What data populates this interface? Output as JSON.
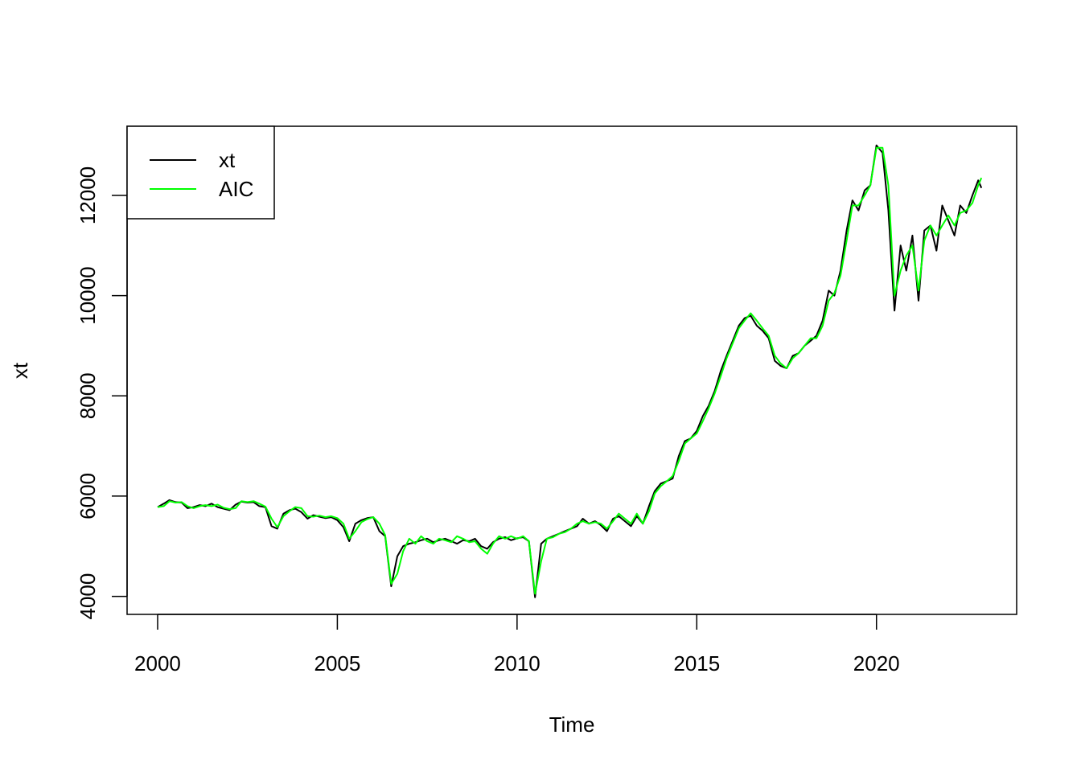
{
  "chart_data": {
    "type": "line",
    "title": "",
    "xlabel": "Time",
    "ylabel": "xt",
    "xlim": [
      1999.15,
      2023.9
    ],
    "ylim": [
      3640,
      13380
    ],
    "x_ticks": [
      2000,
      2005,
      2010,
      2015,
      2020
    ],
    "y_ticks": [
      4000,
      6000,
      8000,
      10000,
      12000
    ],
    "grid": false,
    "legend_position": "top-left",
    "series": [
      {
        "name": "xt",
        "color": "#000000",
        "points": [
          [
            2000.0,
            5780
          ],
          [
            2000.17,
            5850
          ],
          [
            2000.33,
            5920
          ],
          [
            2000.5,
            5880
          ],
          [
            2000.67,
            5870
          ],
          [
            2000.83,
            5760
          ],
          [
            2001.0,
            5780
          ],
          [
            2001.17,
            5820
          ],
          [
            2001.33,
            5800
          ],
          [
            2001.5,
            5850
          ],
          [
            2001.67,
            5780
          ],
          [
            2001.83,
            5750
          ],
          [
            2002.0,
            5720
          ],
          [
            2002.17,
            5830
          ],
          [
            2002.33,
            5890
          ],
          [
            2002.5,
            5870
          ],
          [
            2002.67,
            5880
          ],
          [
            2002.83,
            5800
          ],
          [
            2003.0,
            5780
          ],
          [
            2003.17,
            5400
          ],
          [
            2003.33,
            5350
          ],
          [
            2003.5,
            5650
          ],
          [
            2003.67,
            5720
          ],
          [
            2003.83,
            5750
          ],
          [
            2004.0,
            5680
          ],
          [
            2004.17,
            5550
          ],
          [
            2004.33,
            5620
          ],
          [
            2004.5,
            5590
          ],
          [
            2004.67,
            5560
          ],
          [
            2004.83,
            5580
          ],
          [
            2005.0,
            5520
          ],
          [
            2005.17,
            5380
          ],
          [
            2005.33,
            5100
          ],
          [
            2005.5,
            5450
          ],
          [
            2005.67,
            5520
          ],
          [
            2005.83,
            5560
          ],
          [
            2006.0,
            5580
          ],
          [
            2006.17,
            5300
          ],
          [
            2006.33,
            5200
          ],
          [
            2006.5,
            4200
          ],
          [
            2006.67,
            4800
          ],
          [
            2006.83,
            5000
          ],
          [
            2007.0,
            5050
          ],
          [
            2007.17,
            5080
          ],
          [
            2007.33,
            5120
          ],
          [
            2007.5,
            5150
          ],
          [
            2007.67,
            5080
          ],
          [
            2007.83,
            5120
          ],
          [
            2008.0,
            5150
          ],
          [
            2008.17,
            5100
          ],
          [
            2008.33,
            5050
          ],
          [
            2008.5,
            5120
          ],
          [
            2008.67,
            5100
          ],
          [
            2008.83,
            5150
          ],
          [
            2009.0,
            5000
          ],
          [
            2009.17,
            4950
          ],
          [
            2009.33,
            5080
          ],
          [
            2009.5,
            5150
          ],
          [
            2009.67,
            5180
          ],
          [
            2009.83,
            5120
          ],
          [
            2010.0,
            5160
          ],
          [
            2010.17,
            5180
          ],
          [
            2010.33,
            5100
          ],
          [
            2010.5,
            3980
          ],
          [
            2010.67,
            5050
          ],
          [
            2010.83,
            5150
          ],
          [
            2011.0,
            5200
          ],
          [
            2011.17,
            5250
          ],
          [
            2011.33,
            5300
          ],
          [
            2011.5,
            5350
          ],
          [
            2011.67,
            5400
          ],
          [
            2011.83,
            5550
          ],
          [
            2012.0,
            5450
          ],
          [
            2012.17,
            5500
          ],
          [
            2012.33,
            5420
          ],
          [
            2012.5,
            5300
          ],
          [
            2012.67,
            5550
          ],
          [
            2012.83,
            5600
          ],
          [
            2013.0,
            5500
          ],
          [
            2013.17,
            5400
          ],
          [
            2013.33,
            5600
          ],
          [
            2013.5,
            5450
          ],
          [
            2013.67,
            5800
          ],
          [
            2013.83,
            6100
          ],
          [
            2014.0,
            6250
          ],
          [
            2014.17,
            6300
          ],
          [
            2014.33,
            6350
          ],
          [
            2014.5,
            6800
          ],
          [
            2014.67,
            7100
          ],
          [
            2014.83,
            7150
          ],
          [
            2015.0,
            7300
          ],
          [
            2015.17,
            7600
          ],
          [
            2015.33,
            7800
          ],
          [
            2015.5,
            8100
          ],
          [
            2015.67,
            8500
          ],
          [
            2015.83,
            8800
          ],
          [
            2016.0,
            9100
          ],
          [
            2016.17,
            9400
          ],
          [
            2016.33,
            9550
          ],
          [
            2016.5,
            9600
          ],
          [
            2016.67,
            9400
          ],
          [
            2016.83,
            9300
          ],
          [
            2017.0,
            9150
          ],
          [
            2017.17,
            8700
          ],
          [
            2017.33,
            8600
          ],
          [
            2017.5,
            8550
          ],
          [
            2017.67,
            8800
          ],
          [
            2017.83,
            8850
          ],
          [
            2018.0,
            9000
          ],
          [
            2018.17,
            9100
          ],
          [
            2018.33,
            9200
          ],
          [
            2018.5,
            9500
          ],
          [
            2018.67,
            10100
          ],
          [
            2018.83,
            10000
          ],
          [
            2019.0,
            10500
          ],
          [
            2019.17,
            11300
          ],
          [
            2019.33,
            11900
          ],
          [
            2019.5,
            11700
          ],
          [
            2019.67,
            12100
          ],
          [
            2019.83,
            12200
          ],
          [
            2020.0,
            13000
          ],
          [
            2020.17,
            12850
          ],
          [
            2020.33,
            11700
          ],
          [
            2020.5,
            9700
          ],
          [
            2020.67,
            11000
          ],
          [
            2020.83,
            10500
          ],
          [
            2021.0,
            11200
          ],
          [
            2021.17,
            9900
          ],
          [
            2021.33,
            11300
          ],
          [
            2021.5,
            11400
          ],
          [
            2021.67,
            10900
          ],
          [
            2021.83,
            11800
          ],
          [
            2022.0,
            11500
          ],
          [
            2022.17,
            11200
          ],
          [
            2022.33,
            11800
          ],
          [
            2022.5,
            11650
          ],
          [
            2022.67,
            12000
          ],
          [
            2022.83,
            12300
          ],
          [
            2022.92,
            12150
          ]
        ]
      },
      {
        "name": "AIC",
        "color": "#00ff00",
        "points": [
          [
            2000.0,
            5780
          ],
          [
            2000.17,
            5800
          ],
          [
            2000.33,
            5900
          ],
          [
            2000.5,
            5870
          ],
          [
            2000.67,
            5880
          ],
          [
            2000.83,
            5800
          ],
          [
            2001.0,
            5760
          ],
          [
            2001.17,
            5800
          ],
          [
            2001.33,
            5820
          ],
          [
            2001.5,
            5800
          ],
          [
            2001.67,
            5830
          ],
          [
            2001.83,
            5770
          ],
          [
            2002.0,
            5740
          ],
          [
            2002.17,
            5760
          ],
          [
            2002.33,
            5900
          ],
          [
            2002.5,
            5880
          ],
          [
            2002.67,
            5900
          ],
          [
            2002.83,
            5850
          ],
          [
            2003.0,
            5790
          ],
          [
            2003.17,
            5550
          ],
          [
            2003.33,
            5380
          ],
          [
            2003.5,
            5600
          ],
          [
            2003.67,
            5700
          ],
          [
            2003.83,
            5780
          ],
          [
            2004.0,
            5760
          ],
          [
            2004.17,
            5600
          ],
          [
            2004.33,
            5590
          ],
          [
            2004.5,
            5610
          ],
          [
            2004.67,
            5580
          ],
          [
            2004.83,
            5600
          ],
          [
            2005.0,
            5560
          ],
          [
            2005.17,
            5450
          ],
          [
            2005.33,
            5150
          ],
          [
            2005.5,
            5300
          ],
          [
            2005.67,
            5480
          ],
          [
            2005.83,
            5540
          ],
          [
            2006.0,
            5580
          ],
          [
            2006.17,
            5450
          ],
          [
            2006.33,
            5220
          ],
          [
            2006.5,
            4250
          ],
          [
            2006.67,
            4450
          ],
          [
            2006.83,
            4900
          ],
          [
            2007.0,
            5150
          ],
          [
            2007.17,
            5050
          ],
          [
            2007.33,
            5200
          ],
          [
            2007.5,
            5100
          ],
          [
            2007.67,
            5050
          ],
          [
            2007.83,
            5150
          ],
          [
            2008.0,
            5120
          ],
          [
            2008.17,
            5080
          ],
          [
            2008.33,
            5200
          ],
          [
            2008.5,
            5150
          ],
          [
            2008.67,
            5080
          ],
          [
            2008.83,
            5100
          ],
          [
            2009.0,
            4950
          ],
          [
            2009.17,
            4850
          ],
          [
            2009.33,
            5050
          ],
          [
            2009.5,
            5200
          ],
          [
            2009.67,
            5150
          ],
          [
            2009.83,
            5200
          ],
          [
            2010.0,
            5150
          ],
          [
            2010.17,
            5200
          ],
          [
            2010.33,
            5100
          ],
          [
            2010.5,
            4050
          ],
          [
            2010.67,
            4700
          ],
          [
            2010.83,
            5150
          ],
          [
            2011.0,
            5180
          ],
          [
            2011.17,
            5250
          ],
          [
            2011.33,
            5280
          ],
          [
            2011.5,
            5350
          ],
          [
            2011.67,
            5450
          ],
          [
            2011.83,
            5500
          ],
          [
            2012.0,
            5450
          ],
          [
            2012.17,
            5480
          ],
          [
            2012.33,
            5450
          ],
          [
            2012.5,
            5350
          ],
          [
            2012.67,
            5500
          ],
          [
            2012.83,
            5650
          ],
          [
            2013.0,
            5550
          ],
          [
            2013.17,
            5450
          ],
          [
            2013.33,
            5650
          ],
          [
            2013.5,
            5450
          ],
          [
            2013.67,
            5700
          ],
          [
            2013.83,
            6050
          ],
          [
            2014.0,
            6200
          ],
          [
            2014.17,
            6300
          ],
          [
            2014.33,
            6400
          ],
          [
            2014.5,
            6700
          ],
          [
            2014.67,
            7050
          ],
          [
            2014.83,
            7150
          ],
          [
            2015.0,
            7250
          ],
          [
            2015.17,
            7500
          ],
          [
            2015.33,
            7750
          ],
          [
            2015.5,
            8050
          ],
          [
            2015.67,
            8400
          ],
          [
            2015.83,
            8750
          ],
          [
            2016.0,
            9050
          ],
          [
            2016.17,
            9350
          ],
          [
            2016.33,
            9500
          ],
          [
            2016.5,
            9650
          ],
          [
            2016.67,
            9500
          ],
          [
            2016.83,
            9350
          ],
          [
            2017.0,
            9200
          ],
          [
            2017.17,
            8800
          ],
          [
            2017.33,
            8650
          ],
          [
            2017.5,
            8550
          ],
          [
            2017.67,
            8750
          ],
          [
            2017.83,
            8850
          ],
          [
            2018.0,
            9000
          ],
          [
            2018.17,
            9150
          ],
          [
            2018.33,
            9150
          ],
          [
            2018.5,
            9400
          ],
          [
            2018.67,
            9900
          ],
          [
            2018.83,
            10050
          ],
          [
            2019.0,
            10400
          ],
          [
            2019.17,
            11100
          ],
          [
            2019.33,
            11800
          ],
          [
            2019.5,
            11800
          ],
          [
            2019.67,
            12000
          ],
          [
            2019.83,
            12200
          ],
          [
            2020.0,
            12950
          ],
          [
            2020.17,
            12950
          ],
          [
            2020.33,
            12200
          ],
          [
            2020.5,
            10000
          ],
          [
            2020.67,
            10500
          ],
          [
            2020.83,
            10800
          ],
          [
            2021.0,
            11000
          ],
          [
            2021.17,
            10100
          ],
          [
            2021.33,
            11100
          ],
          [
            2021.5,
            11400
          ],
          [
            2021.67,
            11200
          ],
          [
            2021.83,
            11400
          ],
          [
            2022.0,
            11600
          ],
          [
            2022.17,
            11400
          ],
          [
            2022.33,
            11650
          ],
          [
            2022.5,
            11700
          ],
          [
            2022.67,
            11850
          ],
          [
            2022.83,
            12200
          ],
          [
            2022.92,
            12350
          ]
        ]
      }
    ]
  }
}
